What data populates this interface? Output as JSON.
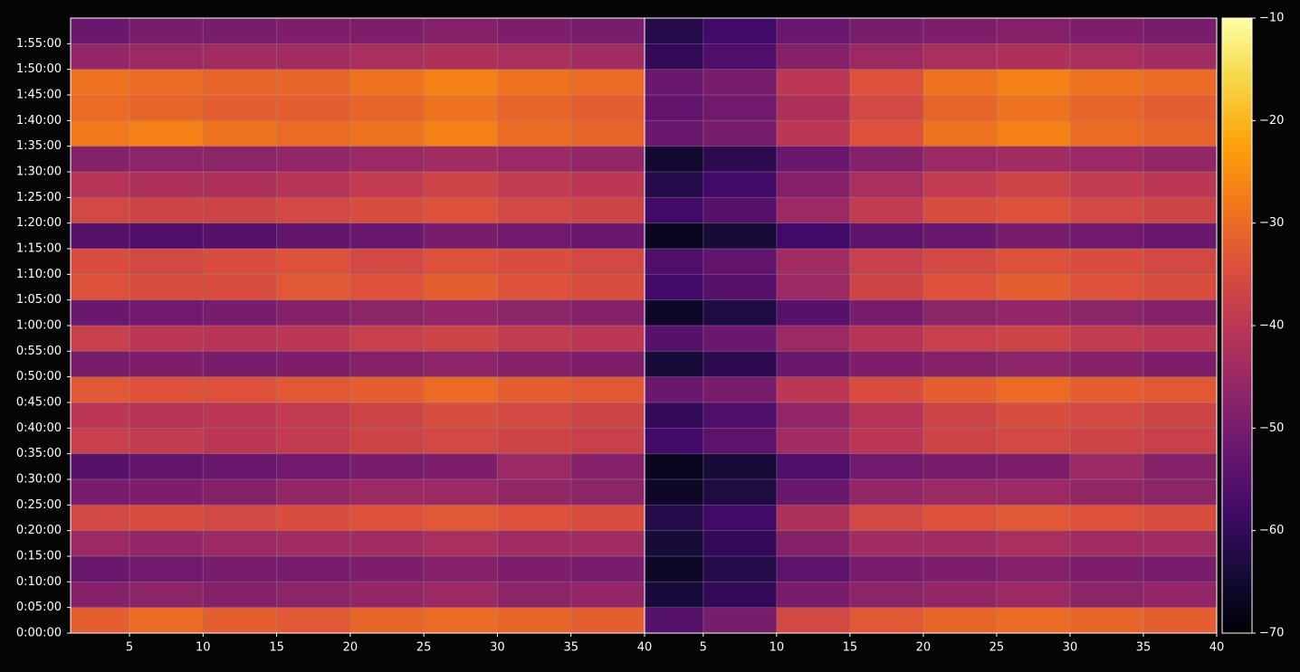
{
  "chart_data": [
    {
      "type": "heatmap",
      "colormap": "inferno",
      "grid": true,
      "xlim": [
        1,
        40
      ],
      "xticks": [
        5,
        10,
        15,
        20,
        25,
        30,
        35,
        40
      ],
      "ylim": [
        0,
        7200
      ],
      "yticks": [
        {
          "value": 0,
          "label": "0:00:00"
        },
        {
          "value": 300,
          "label": "0:05:00"
        },
        {
          "value": 600,
          "label": "0:10:00"
        },
        {
          "value": 900,
          "label": "0:15:00"
        },
        {
          "value": 1200,
          "label": "0:20:00"
        },
        {
          "value": 1500,
          "label": "0:25:00"
        },
        {
          "value": 1800,
          "label": "0:30:00"
        },
        {
          "value": 2100,
          "label": "0:35:00"
        },
        {
          "value": 2400,
          "label": "0:40:00"
        },
        {
          "value": 2700,
          "label": "0:45:00"
        },
        {
          "value": 3000,
          "label": "0:50:00"
        },
        {
          "value": 3300,
          "label": "0:55:00"
        },
        {
          "value": 3600,
          "label": "1:00:00"
        },
        {
          "value": 3900,
          "label": "1:05:00"
        },
        {
          "value": 4200,
          "label": "1:10:00"
        },
        {
          "value": 4500,
          "label": "1:15:00"
        },
        {
          "value": 4800,
          "label": "1:20:00"
        },
        {
          "value": 5100,
          "label": "1:25:00"
        },
        {
          "value": 5400,
          "label": "1:30:00"
        },
        {
          "value": 5700,
          "label": "1:35:00"
        },
        {
          "value": 6000,
          "label": "1:40:00"
        },
        {
          "value": 6300,
          "label": "1:45:00"
        },
        {
          "value": 6600,
          "label": "1:50:00"
        },
        {
          "value": 6900,
          "label": "1:55:00"
        }
      ],
      "xbins": [
        1,
        5,
        10,
        15,
        20,
        25,
        30,
        35,
        40
      ],
      "ybins": [
        0,
        300,
        600,
        900,
        1200,
        1500,
        1800,
        2100,
        2400,
        2700,
        3000,
        3300,
        3600,
        3900,
        4200,
        4500,
        4800,
        5100,
        5400,
        5700,
        6000,
        6300,
        6600,
        6900,
        7200
      ],
      "colorbar": {
        "clim": [
          -70,
          -10
        ],
        "ticks": [
          {
            "value": -70,
            "label": "−70"
          },
          {
            "value": -60,
            "label": "−60"
          },
          {
            "value": -50,
            "label": "−50"
          },
          {
            "value": -40,
            "label": "−40"
          },
          {
            "value": -30,
            "label": "−30"
          },
          {
            "value": -20,
            "label": "−20"
          },
          {
            "value": -10,
            "label": "−10"
          }
        ]
      },
      "values": [
        [
          -32,
          -30,
          -32,
          -33,
          -31,
          -30,
          -31,
          -32
        ],
        [
          -48,
          -47,
          -48,
          -47,
          -46,
          -45,
          -47,
          -46
        ],
        [
          -52,
          -51,
          -50,
          -50,
          -49,
          -48,
          -49,
          -50
        ],
        [
          -45,
          -46,
          -45,
          -44,
          -44,
          -43,
          -44,
          -44
        ],
        [
          -36,
          -35,
          -36,
          -35,
          -34,
          -33,
          -34,
          -35
        ],
        [
          -50,
          -49,
          -48,
          -46,
          -45,
          -45,
          -46,
          -47
        ],
        [
          -55,
          -53,
          -52,
          -51,
          -50,
          -49,
          -45,
          -48
        ],
        [
          -38,
          -39,
          -40,
          -39,
          -37,
          -36,
          -37,
          -38
        ],
        [
          -40,
          -41,
          -40,
          -39,
          -37,
          -35,
          -36,
          -37
        ],
        [
          -33,
          -34,
          -34,
          -33,
          -32,
          -30,
          -32,
          -33
        ],
        [
          -50,
          -49,
          -50,
          -49,
          -48,
          -47,
          -48,
          -49
        ],
        [
          -38,
          -40,
          -41,
          -40,
          -38,
          -37,
          -39,
          -40
        ],
        [
          -52,
          -51,
          -50,
          -48,
          -47,
          -46,
          -47,
          -48
        ],
        [
          -34,
          -35,
          -35,
          -33,
          -34,
          -32,
          -34,
          -35
        ],
        [
          -35,
          -36,
          -35,
          -34,
          -36,
          -34,
          -35,
          -36
        ],
        [
          -55,
          -56,
          -55,
          -53,
          -52,
          -50,
          -51,
          -52
        ],
        [
          -36,
          -37,
          -37,
          -36,
          -35,
          -34,
          -36,
          -37
        ],
        [
          -41,
          -42,
          -42,
          -41,
          -39,
          -37,
          -39,
          -40
        ],
        [
          -48,
          -47,
          -47,
          -46,
          -45,
          -44,
          -45,
          -46
        ],
        [
          -28,
          -27,
          -29,
          -30,
          -29,
          -27,
          -30,
          -31
        ],
        [
          -30,
          -31,
          -32,
          -32,
          -31,
          -29,
          -31,
          -32
        ],
        [
          -29,
          -30,
          -31,
          -31,
          -29,
          -27,
          -29,
          -30
        ],
        [
          -46,
          -45,
          -44,
          -44,
          -43,
          -42,
          -43,
          -44
        ],
        [
          -52,
          -50,
          -50,
          -49,
          -49,
          -48,
          -49,
          -50
        ]
      ]
    },
    {
      "type": "heatmap",
      "colormap": "inferno",
      "grid": true,
      "xlim": [
        1,
        40
      ],
      "xticks": [
        5,
        10,
        15,
        20,
        25,
        30,
        35,
        40
      ],
      "ylim": [
        0,
        7200
      ],
      "xbins": [
        1,
        5,
        10,
        15,
        20,
        25,
        30,
        35,
        40
      ],
      "ybins": [
        0,
        300,
        600,
        900,
        1200,
        1500,
        1800,
        2100,
        2400,
        2700,
        3000,
        3300,
        3600,
        3900,
        4200,
        4500,
        4800,
        5100,
        5400,
        5700,
        6000,
        6300,
        6600,
        6900,
        7200
      ],
      "values": [
        [
          -55,
          -50,
          -36,
          -33,
          -31,
          -30,
          -31,
          -32
        ],
        [
          -64,
          -60,
          -50,
          -47,
          -46,
          -45,
          -47,
          -46
        ],
        [
          -66,
          -62,
          -54,
          -50,
          -49,
          -48,
          -49,
          -50
        ],
        [
          -64,
          -60,
          -48,
          -44,
          -44,
          -43,
          -44,
          -44
        ],
        [
          -62,
          -58,
          -42,
          -36,
          -34,
          -33,
          -34,
          -35
        ],
        [
          -66,
          -63,
          -52,
          -46,
          -45,
          -45,
          -46,
          -47
        ],
        [
          -67,
          -64,
          -56,
          -51,
          -50,
          -49,
          -45,
          -48
        ],
        [
          -58,
          -54,
          -44,
          -40,
          -37,
          -36,
          -37,
          -38
        ],
        [
          -60,
          -56,
          -46,
          -41,
          -37,
          -35,
          -36,
          -37
        ],
        [
          -52,
          -50,
          -40,
          -35,
          -32,
          -30,
          -32,
          -33
        ],
        [
          -64,
          -61,
          -52,
          -49,
          -48,
          -47,
          -48,
          -49
        ],
        [
          -55,
          -52,
          -45,
          -41,
          -38,
          -37,
          -39,
          -40
        ],
        [
          -66,
          -63,
          -55,
          -50,
          -47,
          -46,
          -47,
          -48
        ],
        [
          -58,
          -55,
          -45,
          -37,
          -34,
          -32,
          -34,
          -35
        ],
        [
          -56,
          -53,
          -44,
          -38,
          -36,
          -34,
          -35,
          -36
        ],
        [
          -67,
          -64,
          -58,
          -54,
          -52,
          -50,
          -51,
          -52
        ],
        [
          -58,
          -55,
          -45,
          -39,
          -35,
          -34,
          -36,
          -37
        ],
        [
          -62,
          -58,
          -48,
          -43,
          -39,
          -37,
          -39,
          -40
        ],
        [
          -65,
          -61,
          -52,
          -48,
          -45,
          -44,
          -45,
          -46
        ],
        [
          -52,
          -50,
          -40,
          -34,
          -29,
          -27,
          -30,
          -31
        ],
        [
          -53,
          -51,
          -42,
          -36,
          -31,
          -29,
          -31,
          -32
        ],
        [
          -52,
          -50,
          -40,
          -34,
          -29,
          -27,
          -29,
          -30
        ],
        [
          -60,
          -56,
          -48,
          -45,
          -43,
          -42,
          -43,
          -44
        ],
        [
          -62,
          -58,
          -52,
          -50,
          -49,
          -48,
          -49,
          -50
        ]
      ]
    }
  ]
}
